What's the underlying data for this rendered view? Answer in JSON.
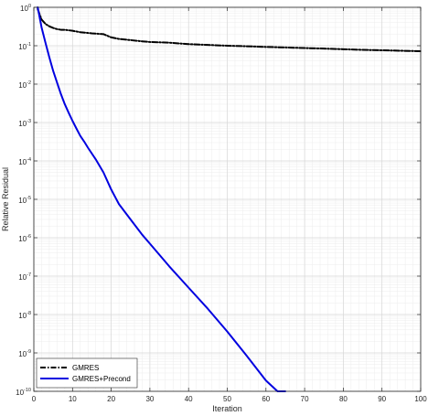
{
  "chart_data": {
    "type": "line",
    "title": "",
    "xlabel": "Iteration",
    "ylabel": "Relative Residual",
    "xlim": [
      0,
      100
    ],
    "ylim_log10": [
      -10,
      0
    ],
    "yscale": "log",
    "grid": true,
    "minor_grid": true,
    "legend_position": "bottom-left",
    "x_ticks": [
      "0",
      "10",
      "20",
      "30",
      "40",
      "50",
      "60",
      "70",
      "80",
      "90",
      "100"
    ],
    "y_tick_base": "10",
    "y_tick_exponents": [
      "0",
      "-1",
      "-2",
      "-3",
      "-4",
      "-5",
      "-6",
      "-7",
      "-8",
      "-9",
      "-10"
    ],
    "series": [
      {
        "name": "GMRES",
        "color": "#000000",
        "dash": "dashdot",
        "x": [
          1,
          2,
          3,
          4,
          5,
          6,
          7,
          8,
          10,
          12,
          15,
          18,
          20,
          22,
          25,
          28,
          30,
          35,
          40,
          45,
          50,
          55,
          60,
          65,
          70,
          75,
          80,
          85,
          90,
          95,
          100
        ],
        "y": [
          0.9,
          0.48,
          0.37,
          0.32,
          0.29,
          0.27,
          0.26,
          0.26,
          0.245,
          0.225,
          0.21,
          0.2,
          0.165,
          0.15,
          0.14,
          0.13,
          0.125,
          0.12,
          0.11,
          0.105,
          0.1,
          0.097,
          0.093,
          0.09,
          0.087,
          0.084,
          0.081,
          0.078,
          0.076,
          0.074,
          0.072
        ]
      },
      {
        "name": "GMRES+Precond",
        "color": "#0000E0",
        "dash": "solid",
        "x": [
          1,
          2,
          3,
          4,
          5,
          6,
          7,
          8,
          9,
          10,
          11,
          12,
          13,
          14,
          16,
          18,
          20,
          22,
          25,
          28,
          30,
          35,
          40,
          45,
          50,
          55,
          60,
          63,
          65
        ],
        "y": [
          1.0,
          0.3,
          0.12,
          0.05,
          0.022,
          0.011,
          0.0055,
          0.003,
          0.0018,
          0.0011,
          0.0007,
          0.00045,
          0.00032,
          0.00022,
          0.00011,
          5e-05,
          1.8e-05,
          7.5e-06,
          3e-06,
          1.2e-06,
          7e-07,
          1.8e-07,
          5e-08,
          1.4e-08,
          3.6e-09,
          8.5e-10,
          1.9e-10,
          7e-11,
          4e-11
        ]
      }
    ]
  }
}
